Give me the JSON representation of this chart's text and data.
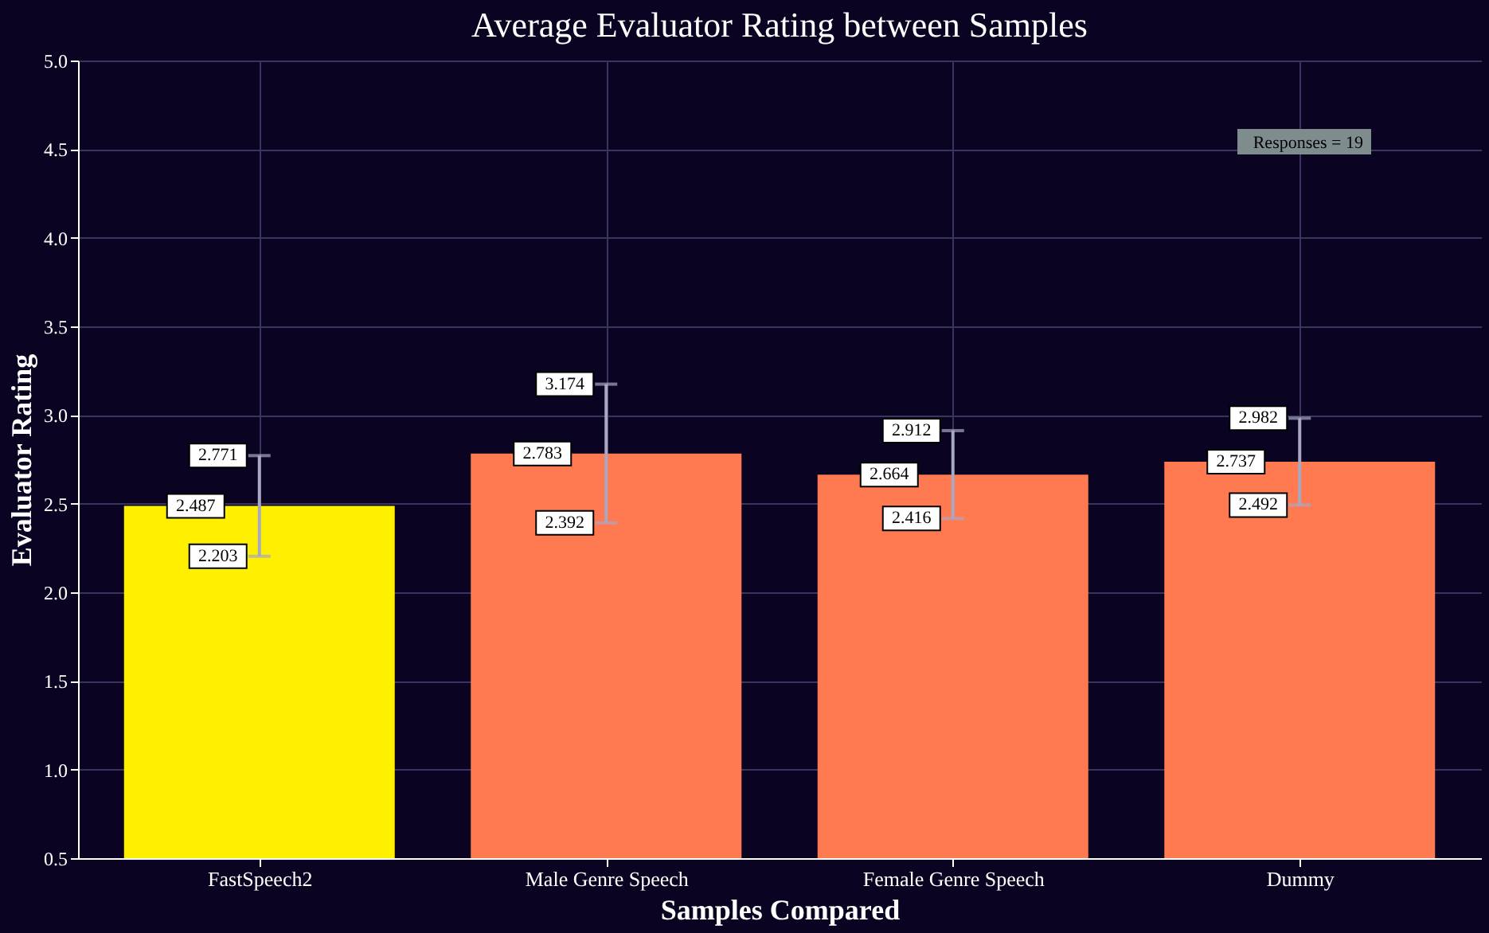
{
  "chart_data": {
    "type": "bar",
    "title": "Average Evaluator Rating between Samples",
    "xlabel": "Samples Compared",
    "ylabel": "Evaluator Rating",
    "categories": [
      "FastSpeech2",
      "Male Genre Speech",
      "Female Genre Speech",
      "Dummy"
    ],
    "values": [
      2.487,
      2.783,
      2.664,
      2.737
    ],
    "colors": [
      "#fff000",
      "#ff7a50",
      "#ff7a50",
      "#ff7a50"
    ],
    "errors": [
      [
        2.203,
        2.771
      ],
      [
        2.392,
        3.174
      ],
      [
        2.416,
        2.912
      ],
      [
        2.492,
        2.982
      ]
    ],
    "data_labels": true,
    "annotations": [
      {
        "text": "2.771",
        "x": "FastSpeech2",
        "y": 2.771
      },
      {
        "text": "2.203",
        "x": "FastSpeech2",
        "y": 2.203
      },
      {
        "text": "3.174",
        "x": "Male Genre Speech",
        "y": 3.174
      },
      {
        "text": "2.392",
        "x": "Male Genre Speech",
        "y": 2.392
      },
      {
        "text": "2.912",
        "x": "Female Genre Speech",
        "y": 2.912
      },
      {
        "text": "2.416",
        "x": "Female Genre Speech",
        "y": 2.416
      },
      {
        "text": "2.982",
        "x": "Dummy",
        "y": 2.982
      },
      {
        "text": "2.492",
        "x": "Dummy",
        "y": 2.492
      },
      "Responses = 19"
    ],
    "ylim": [
      0.5,
      5.0
    ],
    "yticks": [
      0.5,
      {
        "value": 1,
        "label": "1.0"
      },
      1.5,
      {
        "value": 2,
        "label": "2.0"
      },
      2.5,
      {
        "value": 3,
        "label": "3.0"
      },
      3.5,
      {
        "value": 4,
        "label": "4.0"
      },
      4.5,
      {
        "value": 5,
        "label": "5.0"
      }
    ],
    "grid": true
  }
}
